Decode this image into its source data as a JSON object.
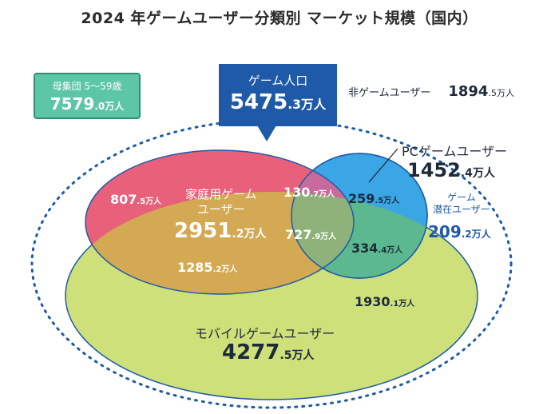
{
  "title": "2024 年ゲームユーザー分類別 マーケット規模（国内）",
  "population": {
    "label": "母集団 5～59歳",
    "value_main": "7579",
    "value_small": ".0",
    "unit": "万人"
  },
  "game_population": {
    "label": "ゲーム人口",
    "value_main": "5475",
    "value_small": ".3",
    "unit": "万人"
  },
  "non_game_users": {
    "label": "非ゲームユーザー",
    "value_main": "1894",
    "value_small": ".5",
    "unit": "万人"
  },
  "pc_users": {
    "label": "PCゲームユーザー",
    "value_main": "1452",
    "value_small": ".4",
    "unit": "万人"
  },
  "potential_users": {
    "label_line1": "ゲーム",
    "label_line2": "潜在ユーザー",
    "value_main": "209",
    "value_small": ".2",
    "unit": "万人"
  },
  "console_users": {
    "label_line1": "家庭用ゲーム",
    "label_line2": "ユーザー",
    "value_main": "2951",
    "value_small": ".2",
    "unit": "万人"
  },
  "mobile_users": {
    "label": "モバイルゲームユーザー",
    "value_main": "4277",
    "value_small": ".5",
    "unit": "万人"
  },
  "segments": {
    "console_only": {
      "value_main": "807",
      "value_small": ".5",
      "unit": "万人"
    },
    "console_pc": {
      "value_main": "130",
      "value_small": ".7",
      "unit": "万人"
    },
    "pc_only": {
      "value_main": "259",
      "value_small": ".5",
      "unit": "万人"
    },
    "all_three": {
      "value_main": "727",
      "value_small": ".9",
      "unit": "万人"
    },
    "console_mobile": {
      "value_main": "1285",
      "value_small": ".2",
      "unit": "万人"
    },
    "pc_mobile": {
      "value_main": "334",
      "value_small": ".4",
      "unit": "万人"
    },
    "mobile_only": {
      "value_main": "1930",
      "value_small": ".1",
      "unit": "万人"
    }
  },
  "colors": {
    "console": "#e8607a",
    "pc": "#3aa6e6",
    "mobile": "#cde07a",
    "callout": "#1e5aa8",
    "population_box": "#5cc6a6",
    "dotted_outline": "#1e5aa8"
  }
}
